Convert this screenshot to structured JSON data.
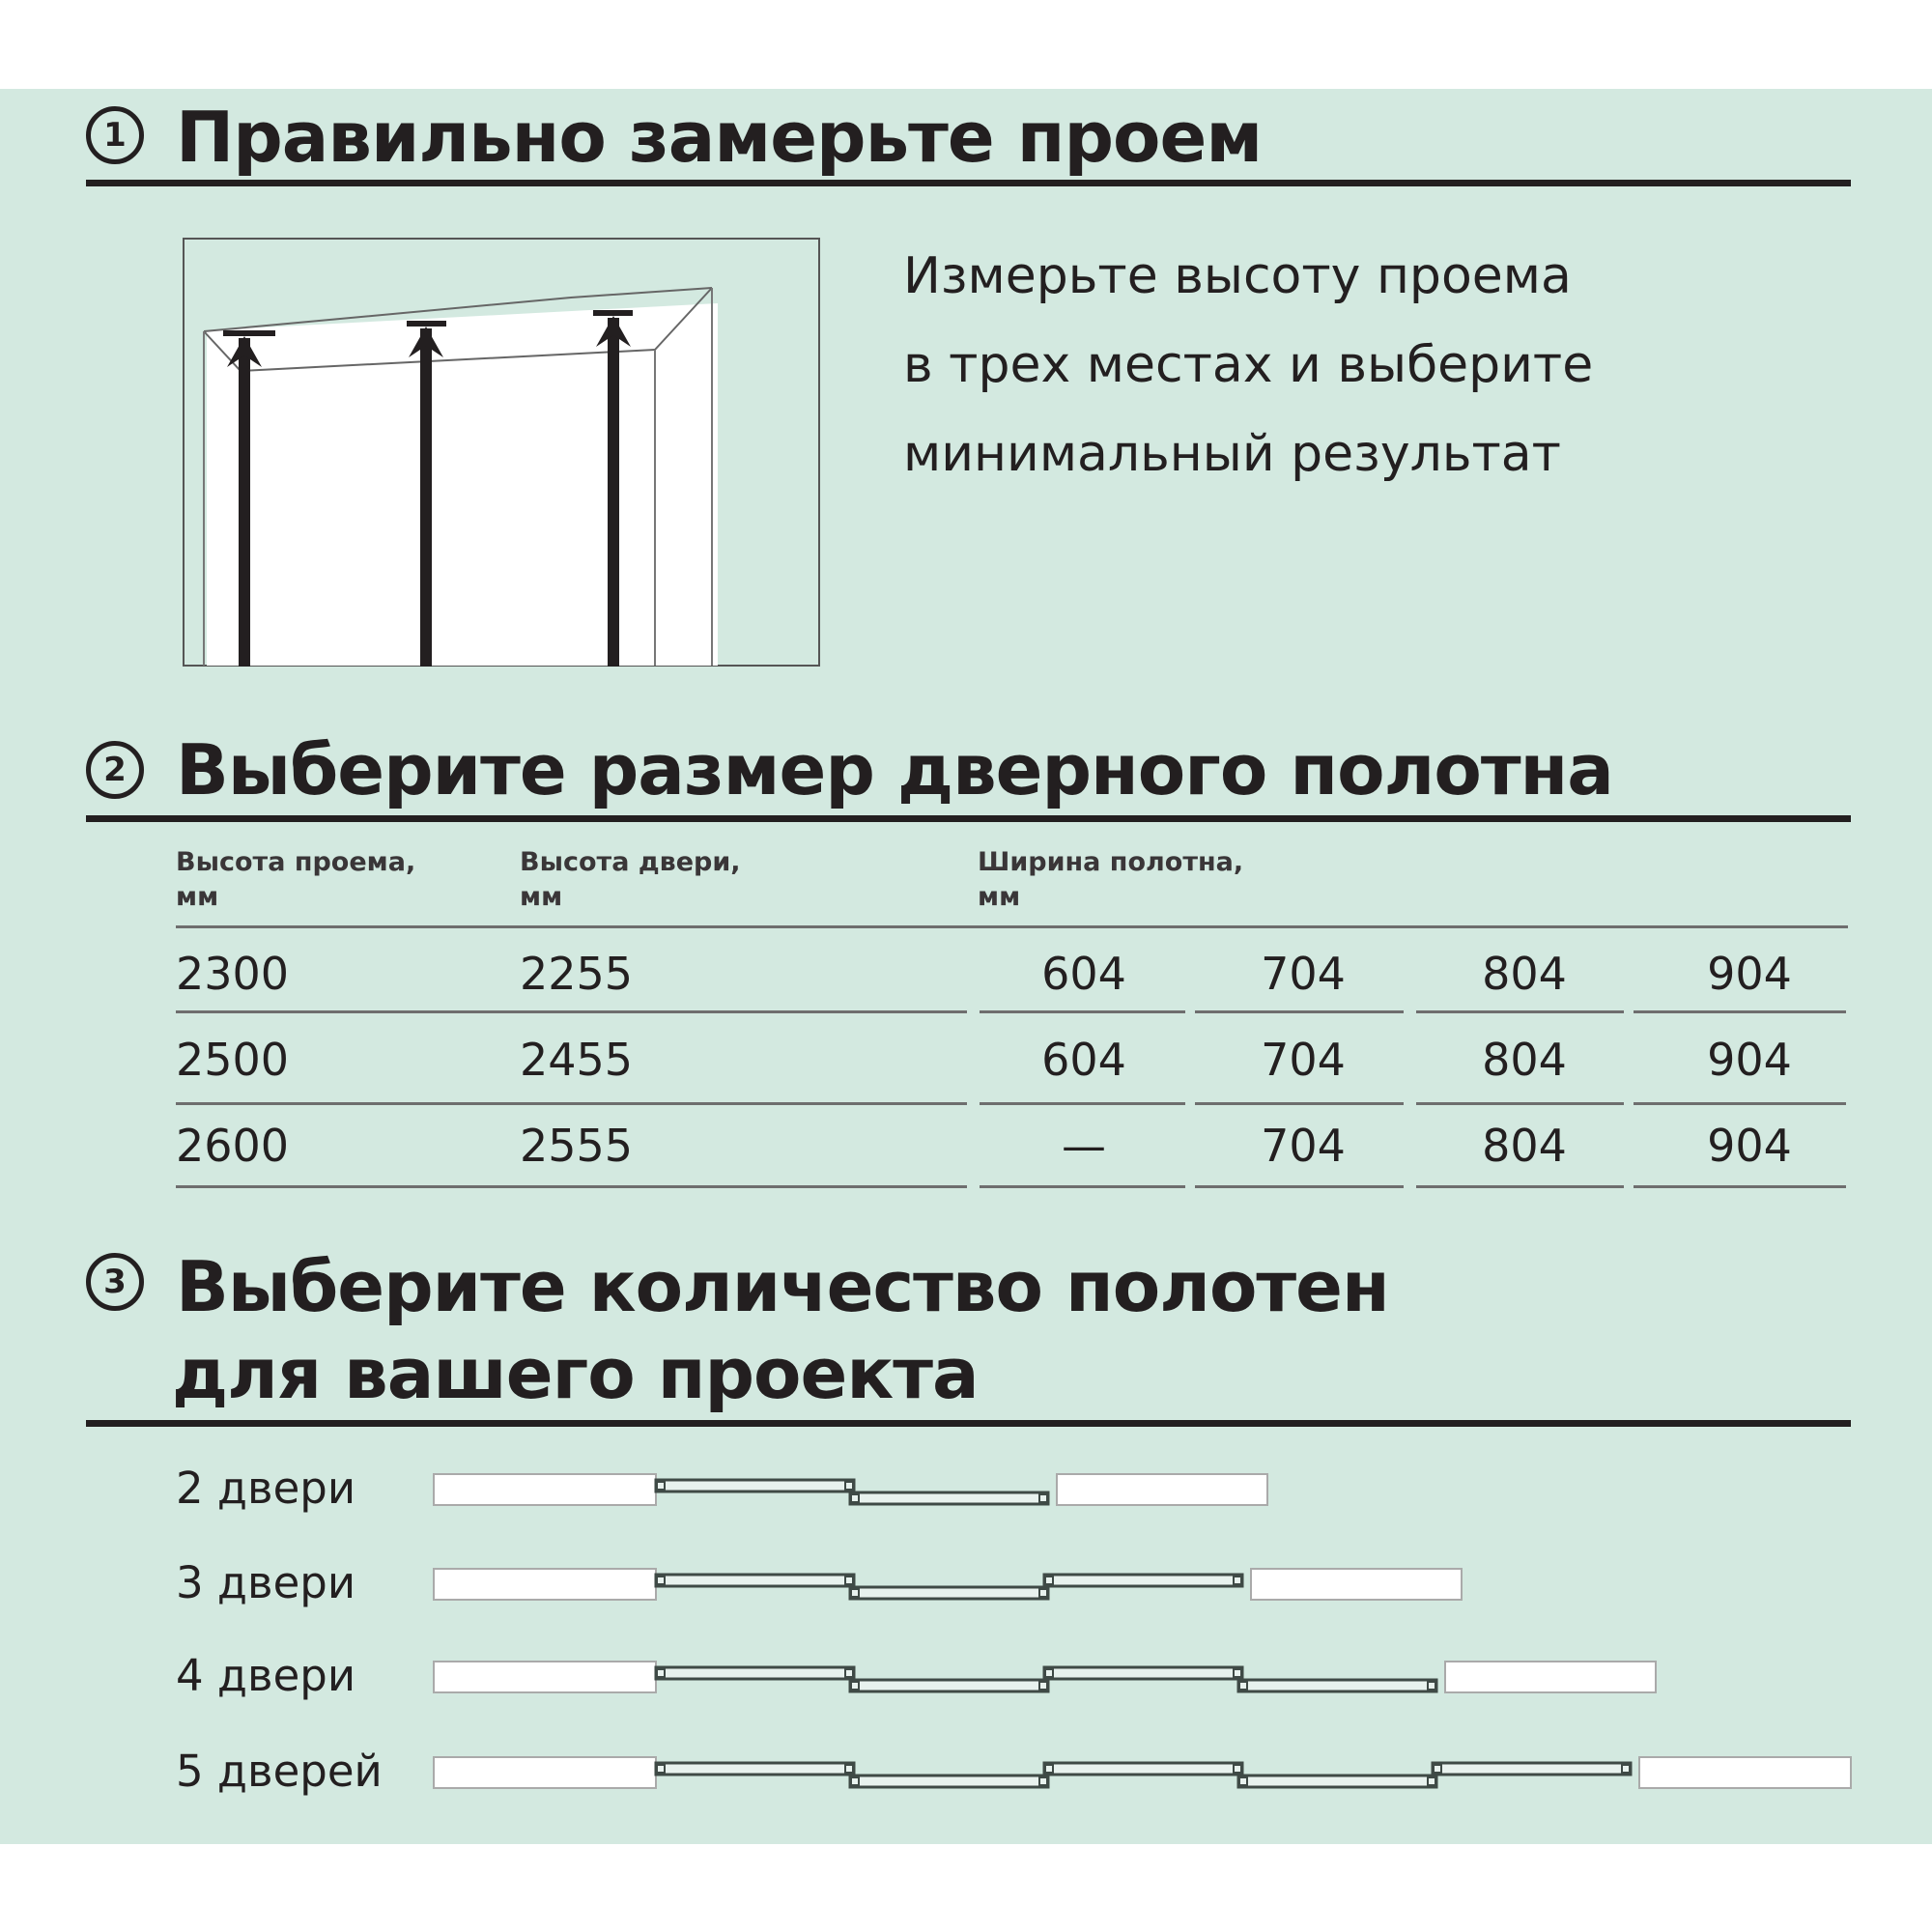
{
  "colors": {
    "background": "#d3e9e0",
    "text": "#231f20"
  },
  "step1": {
    "number": "1",
    "title": "Правильно замерьте проем",
    "text_lines": [
      "Измерьте высоту проема",
      "в трех местах и выберите",
      "минимальный результат"
    ]
  },
  "step2": {
    "number": "2",
    "title": "Выберите размер дверного полотна",
    "headers": {
      "opening_height": [
        "Высота проема,",
        "мм"
      ],
      "door_height": [
        "Высота двери,",
        "мм"
      ],
      "panel_width": [
        "Ширина полотна,",
        "мм"
      ]
    },
    "rows": [
      {
        "opening": "2300",
        "door": "2255",
        "widths": [
          "604",
          "704",
          "804",
          "904"
        ]
      },
      {
        "opening": "2500",
        "door": "2455",
        "widths": [
          "604",
          "704",
          "804",
          "904"
        ]
      },
      {
        "opening": "2600",
        "door": "2555",
        "widths": [
          "—",
          "704",
          "804",
          "904"
        ]
      }
    ]
  },
  "step3": {
    "number": "3",
    "title_lines": [
      "Выберите количество полотен",
      "для вашего проекта"
    ],
    "options": [
      {
        "label": "2 двери",
        "panels": 2
      },
      {
        "label": "3 двери",
        "panels": 3
      },
      {
        "label": "4 двери",
        "panels": 4
      },
      {
        "label": "5 дверей",
        "panels": 5
      }
    ]
  }
}
